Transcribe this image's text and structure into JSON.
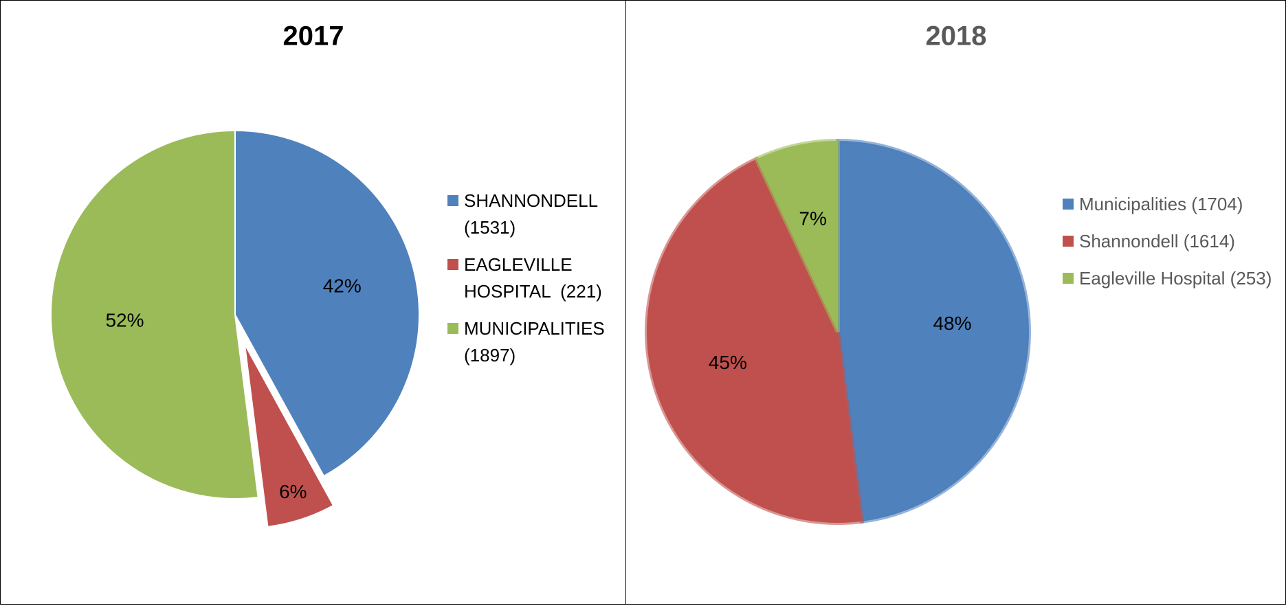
{
  "chart_data": [
    {
      "type": "pie",
      "title": "2017",
      "categories": [
        "SHANNONDELL (1531)",
        "EAGLEVILLE HOSPITAL  (221)",
        "MUNICIPALITIES (1897)"
      ],
      "values": [
        42,
        6,
        52
      ],
      "value_labels": [
        "42%",
        "6%",
        "52%"
      ],
      "colors": [
        "#4f81bd",
        "#c0504d",
        "#9bbb59"
      ],
      "explode": [
        false,
        true,
        false
      ],
      "legend": "right"
    },
    {
      "type": "pie",
      "title": "2018",
      "categories": [
        "Municipalities (1704)",
        "Shannondell (1614)",
        "Eagleville Hospital (253)"
      ],
      "values": [
        48,
        45,
        7
      ],
      "value_labels": [
        "48%",
        "45%",
        "7%"
      ],
      "colors": [
        "#4f81bd",
        "#c0504d",
        "#9bbb59"
      ],
      "explode": [
        false,
        false,
        false
      ],
      "legend": "right"
    }
  ]
}
